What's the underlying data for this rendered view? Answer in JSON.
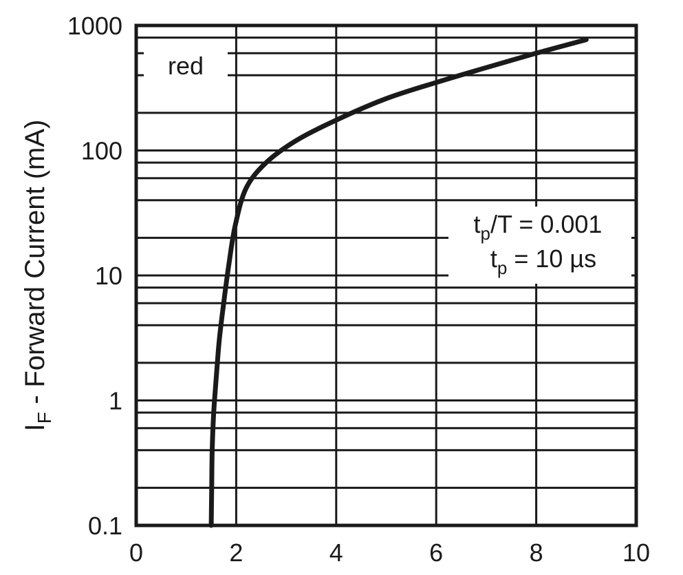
{
  "chart_data": {
    "type": "line",
    "title": "",
    "xlabel": "",
    "ylabel": {
      "main": "I",
      "sub": "F",
      "rest": " - Forward Current (mA)"
    },
    "xlim": [
      0,
      10
    ],
    "ylim": [
      0.1,
      1000
    ],
    "yscale": "log",
    "grid": true,
    "x_ticks": [
      "0",
      "2",
      "4",
      "6",
      "8",
      "10"
    ],
    "y_ticks": [
      "0.1",
      "1",
      "10",
      "100",
      "1000"
    ],
    "legend_label": "red",
    "legend_placement": "top-left",
    "annotation": {
      "line1": {
        "t": "t",
        "sub": "p",
        "rest": "/T = 0.001"
      },
      "line2": {
        "t": "t",
        "sub": "p",
        "rest": " = 10 µs"
      }
    },
    "series": [
      {
        "color": "#1a1a1a",
        "x": [
          1.5,
          1.51,
          1.52,
          1.55,
          1.6,
          1.66,
          1.75,
          1.85,
          1.98,
          2.2,
          2.6,
          3.2,
          4.0,
          5.0,
          6.0,
          7.0,
          8.0,
          9.0
        ],
        "y": [
          0.1,
          0.2,
          0.4,
          0.8,
          1.5,
          3,
          6,
          12,
          25,
          50,
          80,
          120,
          175,
          260,
          350,
          460,
          600,
          770
        ]
      }
    ]
  }
}
